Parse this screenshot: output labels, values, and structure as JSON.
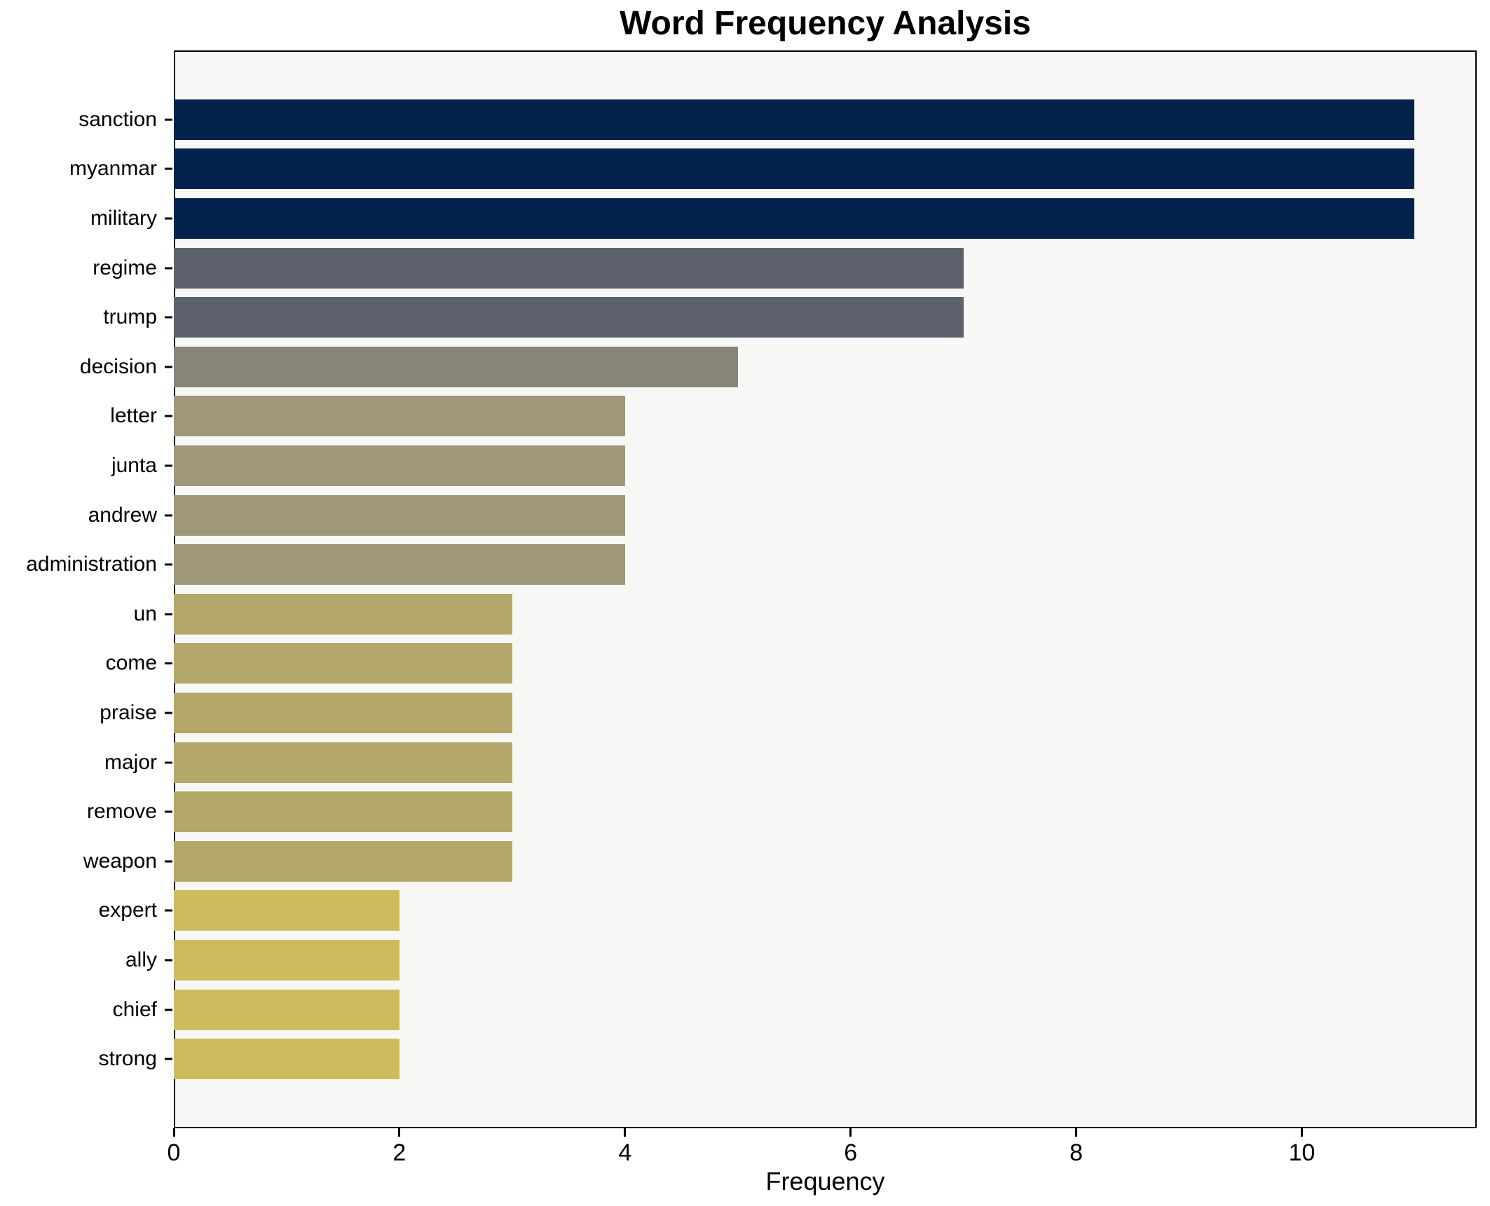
{
  "chart_data": {
    "type": "bar",
    "orientation": "horizontal",
    "title": "Word Frequency Analysis",
    "xlabel": "Frequency",
    "ylabel": "",
    "categories": [
      "sanction",
      "myanmar",
      "military",
      "regime",
      "trump",
      "decision",
      "letter",
      "junta",
      "andrew",
      "administration",
      "un",
      "come",
      "praise",
      "major",
      "remove",
      "weapon",
      "expert",
      "ally",
      "chief",
      "strong"
    ],
    "values": [
      11,
      11,
      11,
      7,
      7,
      5,
      4,
      4,
      4,
      4,
      3,
      3,
      3,
      3,
      3,
      3,
      2,
      2,
      2,
      2
    ],
    "bar_colors": [
      "#03234d",
      "#03234d",
      "#03234d",
      "#5d616c",
      "#5d616c",
      "#878577",
      "#9e9778",
      "#9e9778",
      "#9e9778",
      "#9e9778",
      "#b4a76a",
      "#b4a76a",
      "#b4a76a",
      "#b4a76a",
      "#b4a76a",
      "#b4a76a",
      "#ccbc5e",
      "#ccbc5e",
      "#ccbc5e",
      "#ccbc5e"
    ],
    "xticks": [
      0,
      2,
      4,
      6,
      8,
      10
    ],
    "xlim": [
      0,
      11.55
    ],
    "grid": false,
    "legend": "none",
    "plot_background": "#f7f7f5",
    "figure_background": "#ffffff",
    "axis_color": "#000000",
    "text_color": "#000000"
  }
}
